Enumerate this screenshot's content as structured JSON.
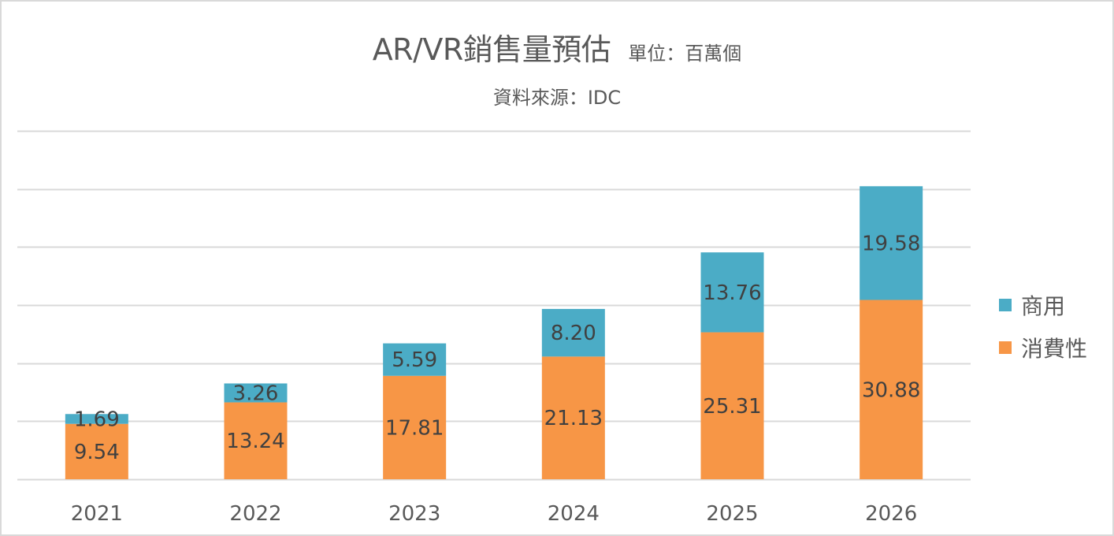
{
  "chart_data": {
    "type": "bar",
    "stacked": true,
    "title": "AR/VR銷售量預估",
    "unit": "單位：百萬個",
    "subtitle": "資料來源：IDC",
    "xlabel": "",
    "ylabel": "",
    "ylim": [
      0,
      60
    ],
    "ytick_step": 10,
    "grid": true,
    "legend_position": "right",
    "categories": [
      "2021",
      "2022",
      "2023",
      "2024",
      "2025",
      "2026"
    ],
    "series": [
      {
        "name": "消費性",
        "color": "#F79646",
        "values": [
          9.54,
          13.24,
          17.81,
          21.13,
          25.31,
          30.88
        ],
        "labels": [
          "9.54",
          "13.24",
          "17.81",
          "21.13",
          "25.31",
          "30.88"
        ]
      },
      {
        "name": "商用",
        "color": "#4BACC6",
        "values": [
          1.69,
          3.26,
          5.59,
          8.2,
          13.76,
          19.58
        ],
        "labels": [
          "1.69",
          "3.26",
          "5.59",
          "8.20",
          "13.76",
          "19.58"
        ]
      }
    ],
    "legend": [
      "商用",
      "消費性"
    ]
  },
  "colors": {
    "gridline": "#d9d9d9",
    "text": "#595959",
    "data_label": "#404040"
  }
}
